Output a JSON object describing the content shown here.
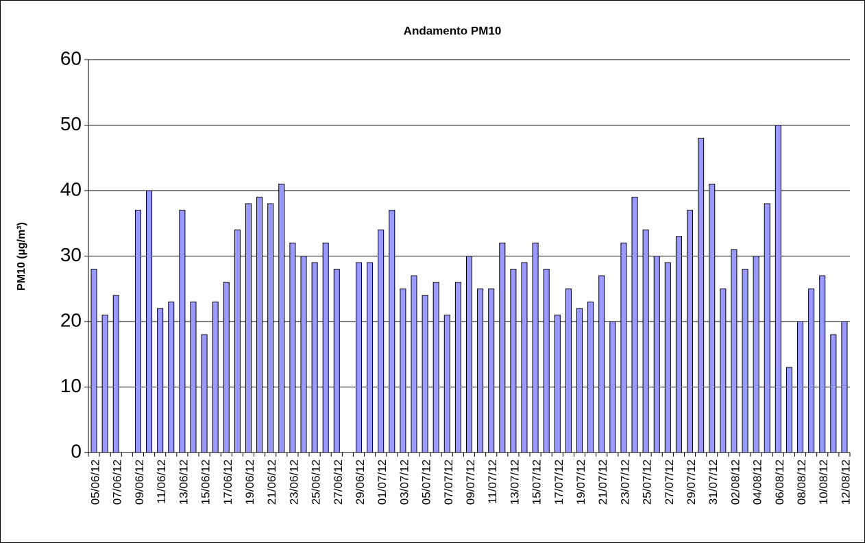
{
  "chart_data": {
    "type": "bar",
    "title": "Andamento PM10",
    "y_label": "PM10 (µg/m³)",
    "categories": [
      "05/06/12",
      null,
      "07/06/12",
      null,
      "09/06/12",
      null,
      "11/06/12",
      null,
      "13/06/12",
      null,
      "15/06/12",
      null,
      "17/06/12",
      null,
      "19/06/12",
      null,
      "21/06/12",
      null,
      "23/06/12",
      null,
      "25/06/12",
      null,
      "27/06/12",
      null,
      "29/06/12",
      null,
      "01/07/12",
      null,
      "03/07/12",
      null,
      "05/07/12",
      null,
      "07/07/12",
      null,
      "09/07/12",
      null,
      "11/07/12",
      null,
      "13/07/12",
      null,
      "15/07/12",
      null,
      "17/07/12",
      null,
      "19/07/12",
      null,
      "21/07/12",
      null,
      "23/07/12",
      null,
      "25/07/12",
      null,
      "27/07/12",
      null,
      "29/07/12",
      null,
      "31/07/12",
      null,
      "02/08/12",
      null,
      "04/08/12",
      null,
      "06/08/12",
      null,
      "08/08/12",
      null,
      "10/08/12",
      null,
      "12/08/12"
    ],
    "values": [
      28,
      21,
      24,
      null,
      37,
      40,
      22,
      23,
      37,
      23,
      18,
      23,
      26,
      34,
      38,
      39,
      38,
      41,
      32,
      30,
      29,
      32,
      28,
      null,
      29,
      29,
      34,
      37,
      25,
      27,
      24,
      26,
      21,
      26,
      30,
      25,
      25,
      32,
      28,
      29,
      32,
      28,
      21,
      25,
      22,
      23,
      27,
      20,
      32,
      39,
      34,
      30,
      29,
      33,
      37,
      48,
      41,
      25,
      31,
      28,
      30,
      38,
      50,
      13,
      20,
      25,
      27,
      18,
      20
    ],
    "color": "#9999ff",
    "ylim": [
      0,
      60
    ],
    "yticks": [
      0,
      10,
      20,
      30,
      40,
      50,
      60
    ],
    "grid": true
  }
}
